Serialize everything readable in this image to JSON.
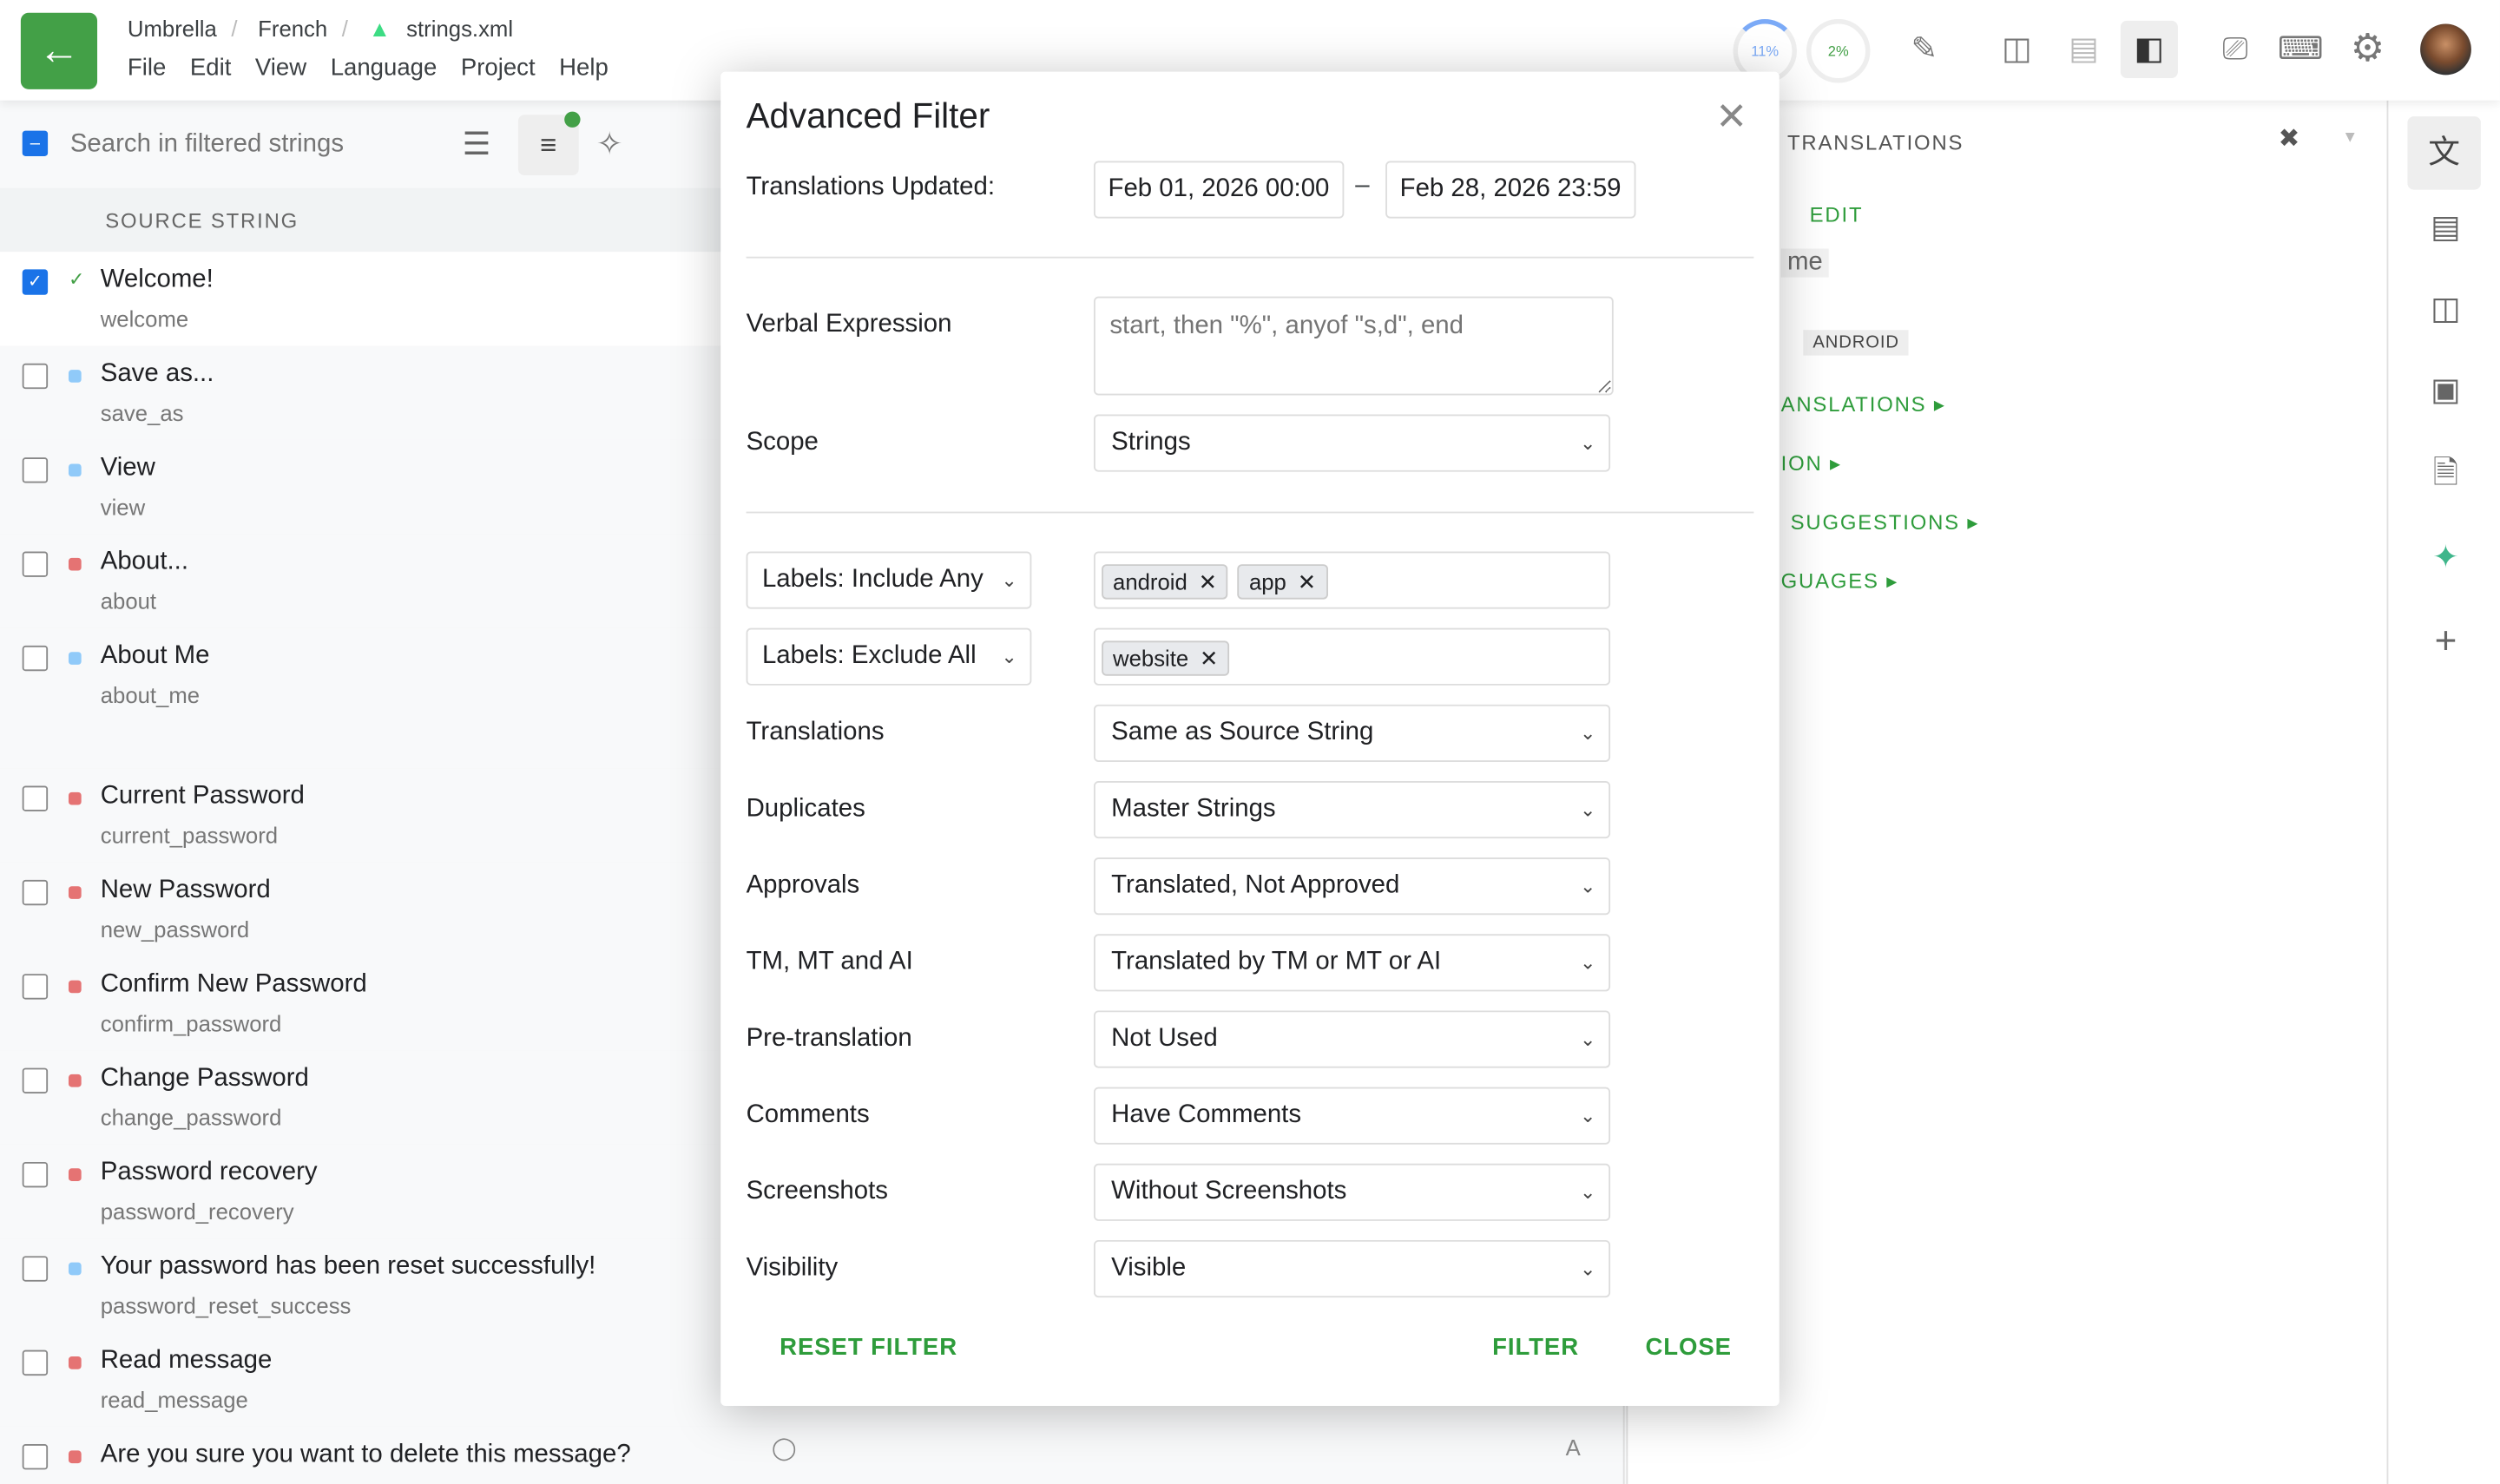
{
  "header": {
    "breadcrumb": [
      "Umbrella",
      "French",
      "strings.xml"
    ],
    "menu": [
      "File",
      "Edit",
      "View",
      "Language",
      "Project",
      "Help"
    ],
    "progress_translated": "11%",
    "progress_approved": "2%"
  },
  "left": {
    "search_placeholder": "Search in filtered strings",
    "column_header": "SOURCE STRING",
    "rows": [
      {
        "text": "Welcome!",
        "key": "welcome",
        "checked": true,
        "status": "approved"
      },
      {
        "text": "Save as...",
        "key": "save_as",
        "checked": false,
        "status": "blue"
      },
      {
        "text": "View",
        "key": "view",
        "checked": false,
        "status": "blue"
      },
      {
        "text": "About...",
        "key": "about",
        "checked": false,
        "status": "red"
      },
      {
        "text": "About Me",
        "key": "about_me",
        "checked": false,
        "status": "blue"
      },
      {
        "text": "Current Password",
        "key": "current_password",
        "checked": false,
        "status": "red"
      },
      {
        "text": "New Password",
        "key": "new_password",
        "checked": false,
        "status": "red"
      },
      {
        "text": "Confirm New Password",
        "key": "confirm_password",
        "checked": false,
        "status": "red"
      },
      {
        "text": "Change Password",
        "key": "change_password",
        "checked": false,
        "status": "red"
      },
      {
        "text": "Password recovery",
        "key": "password_recovery",
        "checked": false,
        "status": "red"
      },
      {
        "text": "Your password has been reset successfully!",
        "key": "password_reset_success",
        "checked": false,
        "status": "blue"
      },
      {
        "text": "Read message",
        "key": "read_message",
        "checked": false,
        "status": "red"
      },
      {
        "text": "Are you sure you want to delete this message?",
        "key": "",
        "checked": false,
        "status": "red"
      }
    ]
  },
  "right": {
    "title": "TRANSLATIONS",
    "edit": "EDIT",
    "partial_text": "me",
    "label_tag": "ANDROID",
    "sections": [
      "ANSLATIONS",
      "ION",
      "SUGGESTIONS",
      "GUAGES"
    ]
  },
  "dialog": {
    "title": "Advanced Filter",
    "updated_label": "Translations Updated:",
    "date_from": "Feb 01, 2026 00:00",
    "date_sep": "–",
    "date_to": "Feb 28, 2026 23:59",
    "verbal_label": "Verbal Expression",
    "verbal_placeholder": "start, then \"%\", anyof \"s,d\", end",
    "scope_label": "Scope",
    "scope": "Strings",
    "labels_include": "Labels: Include Any",
    "include_chips": [
      "android",
      "app"
    ],
    "labels_exclude": "Labels: Exclude All",
    "exclude_chips": [
      "website"
    ],
    "fields": [
      {
        "label": "Translations",
        "value": "Same as Source String"
      },
      {
        "label": "Duplicates",
        "value": "Master Strings"
      },
      {
        "label": "Approvals",
        "value": "Translated, Not Approved"
      },
      {
        "label": "TM, MT and AI",
        "value": "Translated by TM or MT or AI"
      },
      {
        "label": "Pre-translation",
        "value": "Not Used"
      },
      {
        "label": "Comments",
        "value": "Have Comments"
      },
      {
        "label": "Screenshots",
        "value": "Without Screenshots"
      },
      {
        "label": "Visibility",
        "value": "Visible"
      }
    ],
    "reset": "RESET FILTER",
    "filter": "FILTER",
    "close": "CLOSE"
  },
  "colors": {
    "accent": "#43a047",
    "checkbox": "#1a73e8",
    "status_red": "#e57373",
    "status_blue": "#90caf9"
  }
}
